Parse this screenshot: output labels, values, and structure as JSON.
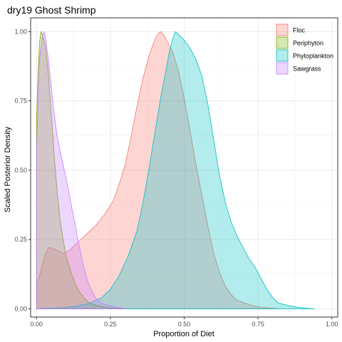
{
  "chart_data": {
    "type": "area",
    "title": "dry19 Ghost Shrimp",
    "xlabel": "Proportion of Diet",
    "ylabel": "Scaled Posterior Density",
    "xlim": [
      -0.02,
      1.02
    ],
    "ylim": [
      -0.03,
      1.05
    ],
    "x_ticks": [
      0.0,
      0.25,
      0.5,
      0.75,
      1.0
    ],
    "x_tick_labels": [
      "0.00",
      "0.25",
      "0.50",
      "0.75",
      "1.00"
    ],
    "y_ticks": [
      0.0,
      0.25,
      0.5,
      0.75,
      1.0
    ],
    "y_tick_labels": [
      "0.00",
      "0.25",
      "0.50",
      "0.75",
      "1.00"
    ],
    "grid": true,
    "legend_position": "top-right",
    "series": [
      {
        "name": "Floc",
        "fill": "#F8766D",
        "stroke": "#F8766D",
        "points": [
          [
            0.0,
            0.09
          ],
          [
            0.01,
            0.12
          ],
          [
            0.02,
            0.16
          ],
          [
            0.03,
            0.2
          ],
          [
            0.04,
            0.22
          ],
          [
            0.05,
            0.22
          ],
          [
            0.07,
            0.21
          ],
          [
            0.09,
            0.2
          ],
          [
            0.11,
            0.21
          ],
          [
            0.13,
            0.23
          ],
          [
            0.15,
            0.25
          ],
          [
            0.17,
            0.27
          ],
          [
            0.2,
            0.3
          ],
          [
            0.23,
            0.34
          ],
          [
            0.26,
            0.39
          ],
          [
            0.28,
            0.45
          ],
          [
            0.3,
            0.52
          ],
          [
            0.32,
            0.62
          ],
          [
            0.34,
            0.73
          ],
          [
            0.36,
            0.83
          ],
          [
            0.38,
            0.91
          ],
          [
            0.4,
            0.97
          ],
          [
            0.41,
            0.99
          ],
          [
            0.42,
            1.0
          ],
          [
            0.43,
            0.99
          ],
          [
            0.44,
            0.97
          ],
          [
            0.46,
            0.93
          ],
          [
            0.48,
            0.86
          ],
          [
            0.5,
            0.76
          ],
          [
            0.52,
            0.64
          ],
          [
            0.54,
            0.52
          ],
          [
            0.56,
            0.41
          ],
          [
            0.58,
            0.3
          ],
          [
            0.6,
            0.2
          ],
          [
            0.62,
            0.13
          ],
          [
            0.64,
            0.08
          ],
          [
            0.66,
            0.05
          ],
          [
            0.68,
            0.03
          ],
          [
            0.72,
            0.015
          ],
          [
            0.76,
            0.005
          ],
          [
            0.82,
            0.0
          ]
        ]
      },
      {
        "name": "Periphyton",
        "fill": "#7CAE00",
        "stroke": "#7CAE00",
        "points": [
          [
            0.0,
            0.68
          ],
          [
            0.005,
            0.85
          ],
          [
            0.01,
            0.96
          ],
          [
            0.015,
            1.0
          ],
          [
            0.02,
            0.99
          ],
          [
            0.03,
            0.95
          ],
          [
            0.04,
            0.85
          ],
          [
            0.05,
            0.7
          ],
          [
            0.06,
            0.55
          ],
          [
            0.07,
            0.42
          ],
          [
            0.08,
            0.32
          ],
          [
            0.09,
            0.25
          ],
          [
            0.1,
            0.19
          ],
          [
            0.12,
            0.12
          ],
          [
            0.14,
            0.07
          ],
          [
            0.16,
            0.04
          ],
          [
            0.18,
            0.02
          ],
          [
            0.21,
            0.01
          ],
          [
            0.25,
            0.003
          ],
          [
            0.3,
            0.0
          ]
        ]
      },
      {
        "name": "Phytoplankton",
        "fill": "#00BFC4",
        "stroke": "#00BFC4",
        "points": [
          [
            0.0,
            0.0
          ],
          [
            0.05,
            0.002
          ],
          [
            0.1,
            0.005
          ],
          [
            0.14,
            0.01
          ],
          [
            0.18,
            0.02
          ],
          [
            0.22,
            0.04
          ],
          [
            0.25,
            0.07
          ],
          [
            0.28,
            0.12
          ],
          [
            0.31,
            0.19
          ],
          [
            0.34,
            0.28
          ],
          [
            0.36,
            0.38
          ],
          [
            0.38,
            0.5
          ],
          [
            0.4,
            0.63
          ],
          [
            0.42,
            0.76
          ],
          [
            0.44,
            0.87
          ],
          [
            0.45,
            0.93
          ],
          [
            0.46,
            0.97
          ],
          [
            0.47,
            1.0
          ],
          [
            0.48,
            0.99
          ],
          [
            0.5,
            0.97
          ],
          [
            0.52,
            0.94
          ],
          [
            0.54,
            0.9
          ],
          [
            0.56,
            0.84
          ],
          [
            0.58,
            0.74
          ],
          [
            0.6,
            0.61
          ],
          [
            0.62,
            0.48
          ],
          [
            0.64,
            0.38
          ],
          [
            0.66,
            0.31
          ],
          [
            0.68,
            0.26
          ],
          [
            0.7,
            0.22
          ],
          [
            0.72,
            0.18
          ],
          [
            0.74,
            0.15
          ],
          [
            0.76,
            0.11
          ],
          [
            0.78,
            0.07
          ],
          [
            0.8,
            0.04
          ],
          [
            0.82,
            0.02
          ],
          [
            0.86,
            0.01
          ],
          [
            0.9,
            0.003
          ],
          [
            0.94,
            0.0
          ]
        ]
      },
      {
        "name": "Sawgrass",
        "fill": "#C77CFF",
        "stroke": "#C77CFF",
        "points": [
          [
            0.0,
            0.57
          ],
          [
            0.005,
            0.75
          ],
          [
            0.01,
            0.9
          ],
          [
            0.02,
            0.98
          ],
          [
            0.025,
            1.0
          ],
          [
            0.03,
            0.98
          ],
          [
            0.04,
            0.9
          ],
          [
            0.05,
            0.8
          ],
          [
            0.06,
            0.7
          ],
          [
            0.07,
            0.62
          ],
          [
            0.08,
            0.57
          ],
          [
            0.09,
            0.52
          ],
          [
            0.1,
            0.47
          ],
          [
            0.11,
            0.42
          ],
          [
            0.12,
            0.36
          ],
          [
            0.13,
            0.31
          ],
          [
            0.14,
            0.25
          ],
          [
            0.15,
            0.2
          ],
          [
            0.16,
            0.15
          ],
          [
            0.17,
            0.11
          ],
          [
            0.18,
            0.08
          ],
          [
            0.2,
            0.04
          ],
          [
            0.22,
            0.02
          ],
          [
            0.25,
            0.01
          ],
          [
            0.3,
            0.0
          ]
        ]
      }
    ]
  }
}
